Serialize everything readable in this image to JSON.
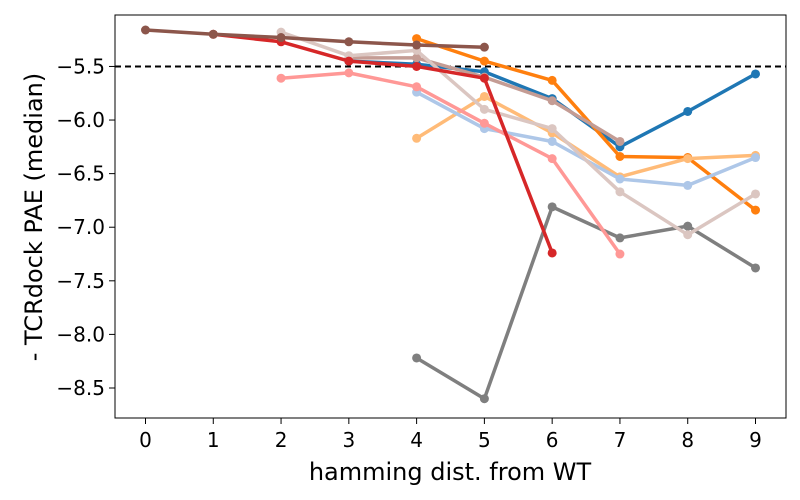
{
  "chart_data": {
    "type": "line",
    "title": "",
    "xlabel": "hamming dist. from WT",
    "ylabel": "- TCRdock PAE (median)",
    "xlim": [
      -0.45,
      9.45
    ],
    "ylim": [
      -8.78,
      -5.02
    ],
    "xticks": [
      0,
      1,
      2,
      3,
      4,
      5,
      6,
      7,
      8,
      9
    ],
    "yticks": [
      -8.5,
      -8.0,
      -7.5,
      -7.0,
      -6.5,
      -6.0,
      -5.5
    ],
    "ytick_labels": [
      "−8.5",
      "−8.0",
      "−7.5",
      "−7.0",
      "−6.5",
      "−6.0",
      "−5.5"
    ],
    "grid": false,
    "legend": "none",
    "reference_line": {
      "y": -5.5,
      "style": "dashed",
      "color": "#000000"
    },
    "series": [
      {
        "color": "#1f77b4",
        "points": [
          [
            3,
            -5.45
          ],
          [
            4,
            -5.48
          ],
          [
            5,
            -5.55
          ],
          [
            6,
            -5.8
          ],
          [
            7,
            -6.25
          ],
          [
            8,
            -5.92
          ],
          [
            9,
            -5.57
          ]
        ]
      },
      {
        "color": "#ff7f0e",
        "points": [
          [
            4,
            -5.24
          ],
          [
            5,
            -5.45
          ],
          [
            6,
            -5.63
          ],
          [
            7,
            -6.34
          ],
          [
            8,
            -6.35
          ],
          [
            9,
            -6.84
          ]
        ]
      },
      {
        "color": "#ffbb78",
        "points": [
          [
            4,
            -6.17
          ],
          [
            5,
            -5.78
          ],
          [
            6,
            -6.12
          ],
          [
            7,
            -6.53
          ],
          [
            8,
            -6.36
          ],
          [
            9,
            -6.33
          ]
        ]
      },
      {
        "color": "#aec7e8",
        "points": [
          [
            4,
            -5.74
          ],
          [
            5,
            -6.08
          ],
          [
            6,
            -6.2
          ],
          [
            7,
            -6.55
          ],
          [
            8,
            -6.61
          ],
          [
            9,
            -6.35
          ]
        ]
      },
      {
        "color": "#c49c94",
        "points": [
          [
            3,
            -5.42
          ],
          [
            4,
            -5.42
          ],
          [
            5,
            -5.6
          ],
          [
            6,
            -5.82
          ],
          [
            7,
            -6.2
          ]
        ]
      },
      {
        "color": "#7f7f7f",
        "points": [
          [
            4,
            -8.22
          ],
          [
            5,
            -8.6
          ],
          [
            6,
            -6.81
          ],
          [
            7,
            -7.1
          ],
          [
            8,
            -6.99
          ],
          [
            9,
            -7.38
          ]
        ]
      },
      {
        "color": "#dbc6c1",
        "points": [
          [
            2,
            -5.18
          ],
          [
            3,
            -5.4
          ],
          [
            4,
            -5.35
          ],
          [
            5,
            -5.9
          ],
          [
            6,
            -6.08
          ],
          [
            7,
            -6.67
          ],
          [
            8,
            -7.07
          ],
          [
            9,
            -6.69
          ]
        ]
      },
      {
        "color": "#ff9896",
        "points": [
          [
            2,
            -5.61
          ],
          [
            3,
            -5.56
          ],
          [
            4,
            -5.69
          ],
          [
            5,
            -6.03
          ],
          [
            6,
            -6.36
          ],
          [
            7,
            -7.25
          ]
        ]
      },
      {
        "color": "#d62728",
        "points": [
          [
            1,
            -5.2
          ],
          [
            2,
            -5.27
          ],
          [
            3,
            -5.45
          ],
          [
            4,
            -5.5
          ],
          [
            5,
            -5.61
          ],
          [
            6,
            -7.24
          ]
        ]
      },
      {
        "color": "#8c564b",
        "points": [
          [
            0,
            -5.16
          ],
          [
            1,
            -5.2
          ],
          [
            2,
            -5.23
          ],
          [
            3,
            -5.27
          ],
          [
            4,
            -5.3
          ],
          [
            5,
            -5.32
          ]
        ]
      }
    ]
  }
}
